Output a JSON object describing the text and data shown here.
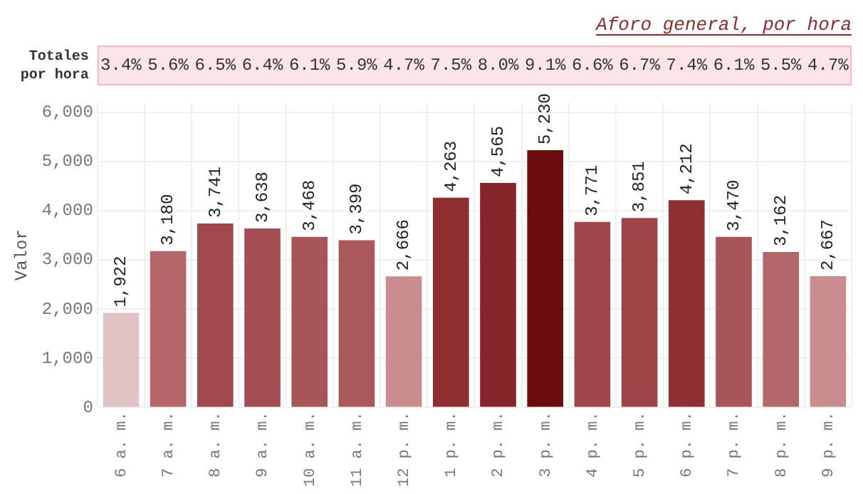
{
  "chart_data": {
    "type": "bar",
    "title": "Aforo general, por hora",
    "ylabel": "Valor",
    "categories": [
      "6 a. m.",
      "7 a. m.",
      "8 a. m.",
      "9 a. m.",
      "10 a. m.",
      "11 a. m.",
      "12 p. m.",
      "1 p. m.",
      "2 p. m.",
      "3 p. m.",
      "4 p. m.",
      "5 p. m.",
      "6 p. m.",
      "7 p. m.",
      "8 p. m.",
      "9 p. m."
    ],
    "values": [
      1922,
      3180,
      3741,
      3638,
      3468,
      3399,
      2666,
      4263,
      4565,
      5230,
      3771,
      3851,
      4212,
      3470,
      3162,
      2667
    ],
    "value_labels": [
      "1,922",
      "3,180",
      "3,741",
      "3,638",
      "3,468",
      "3,399",
      "2,666",
      "4,263",
      "4,565",
      "5,230",
      "3,771",
      "3,851",
      "4,212",
      "3,470",
      "3,162",
      "2,667"
    ],
    "colors": [
      "#e0c3c5",
      "#b5666b",
      "#a0484b",
      "#a34e52",
      "#a85559",
      "#aa585c",
      "#c98d8f",
      "#8f2e31",
      "#86262a",
      "#6b0c0e",
      "#a0474b",
      "#9e4447",
      "#902f33",
      "#a85559",
      "#b4676b",
      "#c98d8f"
    ],
    "ylim": [
      0,
      6200
    ],
    "yticks": [
      0,
      {
        "value": 1000,
        "label": "1,000"
      },
      {
        "value": 2000,
        "label": "2,000"
      },
      {
        "value": 3000,
        "label": "3,000"
      },
      {
        "value": 4000,
        "label": "4,000"
      },
      {
        "value": 5000,
        "label": "5,000"
      },
      {
        "value": 6000,
        "label": "6,000"
      }
    ],
    "grid": true,
    "annotations": [
      "Totales por hora",
      "3.4%",
      "5.6%",
      "6.5%",
      "6.4%",
      "6.1%",
      "5.9%",
      "4.7%",
      "7.5%",
      "8.0%",
      "9.1%",
      "6.6%",
      "6.7%",
      "7.4%",
      "6.1%",
      "5.5%",
      "4.7%"
    ]
  }
}
